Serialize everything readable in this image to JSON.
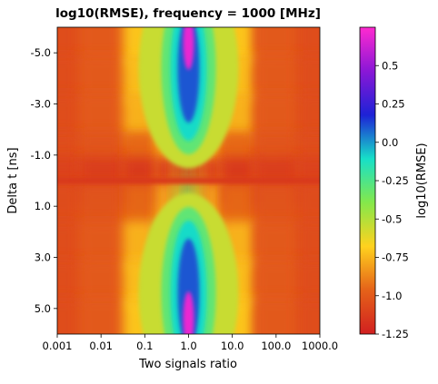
{
  "chart_data": {
    "type": "heatmap",
    "title": "log10(RMSE), frequency = 1000 [MHz]",
    "xlabel": "Two signals ratio",
    "ylabel": "Delta t [ns]",
    "x_scale": "log",
    "x_range": [
      0.001,
      1000
    ],
    "x_ticks": [
      0.001,
      0.01,
      0.1,
      1,
      10,
      100,
      1000
    ],
    "x_tick_labels": [
      "0.001",
      "0.01",
      "0.1",
      "1.0",
      "10.0",
      "100.0",
      "1000.0"
    ],
    "y_range": [
      -6,
      6
    ],
    "y_inverted": true,
    "y_ticks": [
      -5,
      -3,
      -1,
      1,
      3,
      5
    ],
    "y_tick_labels": [
      "-5.0",
      "-3.0",
      "-1.0",
      "1.0",
      "3.0",
      "5.0"
    ],
    "colorbar": {
      "label": "log10(RMSE)",
      "range": [
        -1.25,
        0.75
      ],
      "ticks": [
        0.5,
        0.25,
        0.0,
        -0.25,
        -0.5,
        -0.75,
        -1.0,
        -1.25
      ],
      "tick_labels": [
        "0.5",
        "0.25",
        "0.0",
        "-0.25",
        "-0.5",
        "-0.75",
        "-1.0",
        "-1.25"
      ],
      "colormap": [
        "#d12020",
        "#e56219",
        "#ffd21e",
        "#84e84b",
        "#17e0c8",
        "#1d22d6",
        "#8a17d6",
        "#ff2ad0"
      ]
    },
    "grid": false,
    "values_note_series": [
      {
        "name": "",
        "x_values": [
          0.001,
          0.01,
          0.1,
          0.3,
          0.6,
          1,
          1.7,
          3,
          10,
          100,
          1000
        ]
      }
    ],
    "rows": [
      {
        "delta_t": -5.5,
        "values": [
          -1.05,
          -1.0,
          -0.7,
          -0.45,
          -0.05,
          0.7,
          -0.05,
          -0.45,
          -0.7,
          -1.0,
          -1.05
        ]
      },
      {
        "delta_t": -4.0,
        "values": [
          -1.05,
          -1.0,
          -0.72,
          -0.45,
          -0.1,
          0.25,
          -0.1,
          -0.45,
          -0.72,
          -1.0,
          -1.05
        ]
      },
      {
        "delta_t": -2.5,
        "values": [
          -1.05,
          -1.0,
          -0.75,
          -0.5,
          -0.2,
          0.08,
          -0.2,
          -0.5,
          -0.75,
          -1.0,
          -1.05
        ]
      },
      {
        "delta_t": -1.0,
        "values": [
          -1.05,
          -1.02,
          -0.95,
          -0.78,
          -0.55,
          -0.35,
          -0.55,
          -0.78,
          -0.95,
          -1.02,
          -1.05
        ]
      },
      {
        "delta_t": 0.0,
        "values": [
          -1.1,
          -1.12,
          -1.15,
          -1.15,
          -1.15,
          -1.15,
          -1.15,
          -1.15,
          -1.15,
          -1.12,
          -1.1
        ]
      },
      {
        "delta_t": 1.0,
        "values": [
          -1.05,
          -1.02,
          -0.95,
          -0.78,
          -0.55,
          -0.35,
          -0.55,
          -0.78,
          -0.95,
          -1.02,
          -1.05
        ]
      },
      {
        "delta_t": 2.5,
        "values": [
          -1.05,
          -1.0,
          -0.75,
          -0.5,
          -0.2,
          0.08,
          -0.2,
          -0.5,
          -0.75,
          -1.0,
          -1.05
        ]
      },
      {
        "delta_t": 4.0,
        "values": [
          -1.05,
          -1.0,
          -0.72,
          -0.45,
          -0.1,
          0.25,
          -0.1,
          -0.45,
          -0.72,
          -1.0,
          -1.05
        ]
      },
      {
        "delta_t": 5.5,
        "values": [
          -1.05,
          -1.0,
          -0.7,
          -0.45,
          -0.05,
          0.7,
          -0.05,
          -0.45,
          -0.7,
          -1.0,
          -1.05
        ]
      }
    ]
  }
}
